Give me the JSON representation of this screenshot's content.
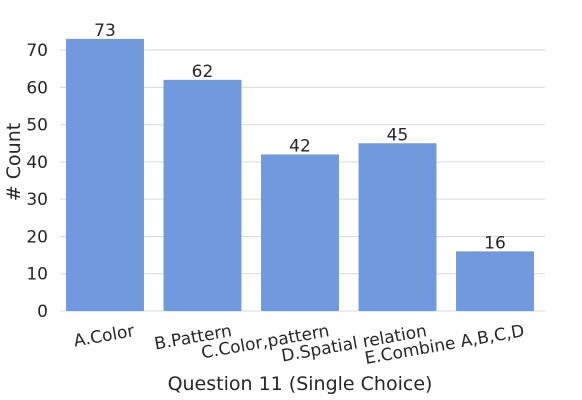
{
  "chart_data": {
    "type": "bar",
    "categories": [
      "A.Color",
      "B.Pattern",
      "C.Color,pattern",
      "D.Spatial relation",
      "E.Combine A,B,C,D"
    ],
    "values": [
      73,
      62,
      42,
      45,
      16
    ],
    "data_labels": [
      "73",
      "62",
      "42",
      "45",
      "16"
    ],
    "xlabel": "Question 11 (Single Choice)",
    "ylabel": "# Count",
    "ylim": [
      0,
      75
    ],
    "yticks": [
      0,
      10,
      20,
      30,
      40,
      50,
      60,
      70
    ],
    "grid": "horizontal",
    "bar_color": "#7199de"
  }
}
